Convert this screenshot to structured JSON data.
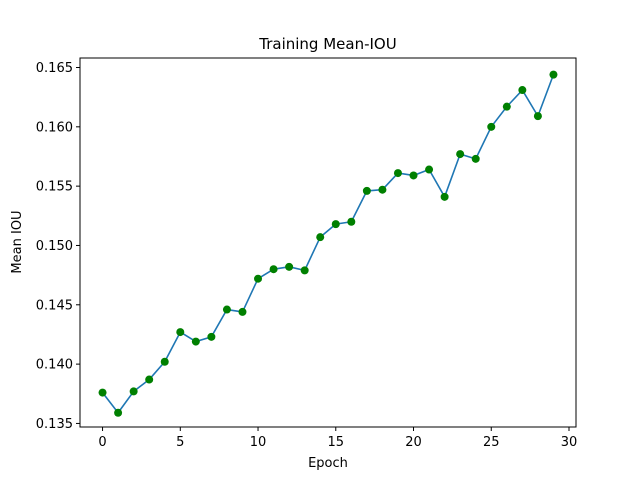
{
  "chart_data": {
    "type": "line",
    "title": "Training Mean-IOU",
    "xlabel": "Epoch",
    "ylabel": "Mean IOU",
    "xlim": [
      -1.45,
      30.45
    ],
    "ylim": [
      0.1347,
      0.1658
    ],
    "x_ticks": [
      0,
      5,
      10,
      15,
      20,
      25,
      30
    ],
    "y_ticks": [
      0.135,
      0.14,
      0.145,
      0.15,
      0.155,
      0.16,
      0.165
    ],
    "y_tick_labels": [
      "0.135",
      "0.140",
      "0.145",
      "0.150",
      "0.155",
      "0.160",
      "0.165"
    ],
    "grid": false,
    "line_color": "#1f77b4",
    "marker_color": "#008000",
    "x": [
      0,
      1,
      2,
      3,
      4,
      5,
      6,
      7,
      8,
      9,
      10,
      11,
      12,
      13,
      14,
      15,
      16,
      17,
      18,
      19,
      20,
      21,
      22,
      23,
      24,
      25,
      26,
      27,
      28,
      29
    ],
    "y": [
      0.1376,
      0.1359,
      0.1377,
      0.1387,
      0.1402,
      0.1427,
      0.1419,
      0.1423,
      0.1446,
      0.1444,
      0.1472,
      0.148,
      0.1482,
      0.1479,
      0.1507,
      0.1518,
      0.152,
      0.1546,
      0.1547,
      0.1561,
      0.1559,
      0.1564,
      0.1541,
      0.1577,
      0.1573,
      0.16,
      0.1617,
      0.1631,
      0.1609,
      0.1644
    ]
  }
}
